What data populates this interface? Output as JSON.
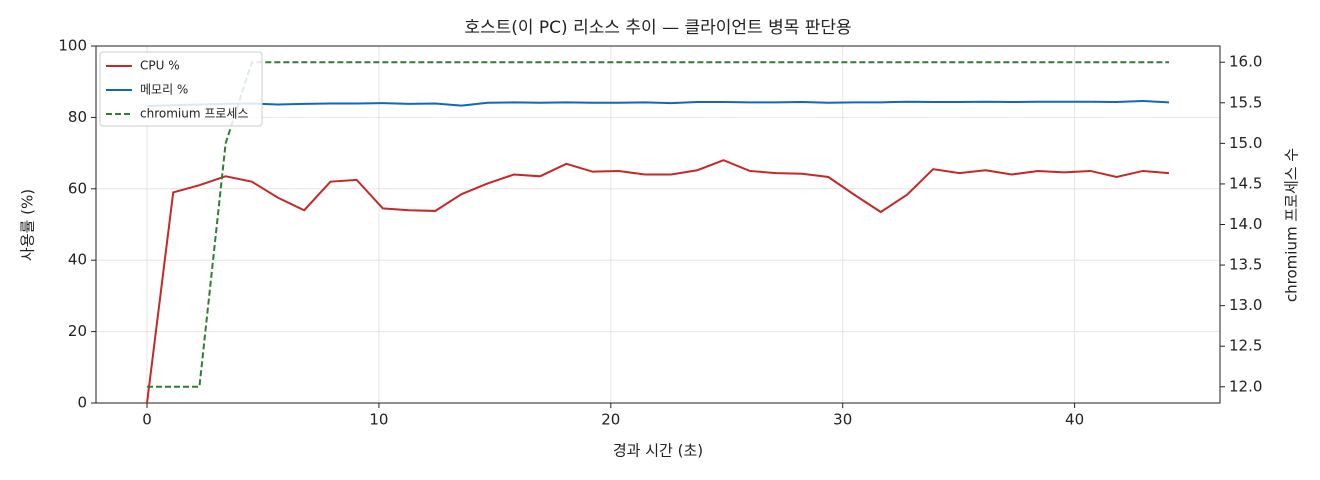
{
  "chart_data": {
    "type": "line",
    "title": "호스트(이 PC) 리소스 추이 — 클라이언트 병목 판단용",
    "x_label": "경과 시간 (초)",
    "y_label": "사용률 (%)",
    "y2_label": "chromium 프로세스 수",
    "x": [
      0,
      1.13,
      2.26,
      3.39,
      4.52,
      5.65,
      6.78,
      7.91,
      9.04,
      10.17,
      11.3,
      12.43,
      13.56,
      14.69,
      15.82,
      16.95,
      18.08,
      19.21,
      20.34,
      21.47,
      22.6,
      23.73,
      24.86,
      25.99,
      27.12,
      28.25,
      29.38,
      30.51,
      31.64,
      32.77,
      33.9,
      35.03,
      36.16,
      37.29,
      38.42,
      39.55,
      40.68,
      41.81,
      42.94,
      44.07
    ],
    "series": [
      {
        "name": "CPU %",
        "color": "#c62828",
        "linestyle": "solid",
        "values": [
          0,
          59,
          61,
          63.5,
          62,
          57.5,
          54,
          62,
          62.5,
          54.5,
          54,
          53.8,
          58.5,
          61.5,
          64,
          63.5,
          67,
          64.8,
          65,
          64,
          64,
          65.2,
          68,
          65,
          64.4,
          64.2,
          63.3,
          58.3,
          53.5,
          58.3,
          65.5,
          64.4,
          65.2,
          64,
          65,
          64.6,
          65,
          63.3,
          65,
          64.4
        ]
      },
      {
        "name": "메모리 %",
        "color": "#1565c0",
        "linestyle": "solid",
        "values": [
          83.2,
          83.4,
          83.6,
          83.8,
          83.9,
          83.6,
          83.8,
          83.9,
          83.9,
          84.0,
          83.8,
          83.9,
          83.3,
          84.1,
          84.2,
          84.1,
          84.2,
          84.1,
          84.1,
          84.2,
          84.0,
          84.3,
          84.3,
          84.2,
          84.2,
          84.3,
          84.1,
          84.2,
          84.2,
          84.4,
          84.3,
          84.3,
          84.4,
          84.3,
          84.4,
          84.4,
          84.4,
          84.3,
          84.6,
          84.2
        ]
      },
      {
        "name": "chromium 프로세스",
        "color": "#2e7d32",
        "linestyle": "dashed",
        "axis": "y2",
        "values": [
          12,
          12,
          12,
          15,
          16,
          16,
          16,
          16,
          16,
          16,
          16,
          16,
          16,
          16,
          16,
          16,
          16,
          16,
          16,
          16,
          16,
          16,
          16,
          16,
          16,
          16,
          16,
          16,
          16,
          16,
          16,
          16,
          16,
          16,
          16,
          16,
          16,
          16,
          16,
          16
        ]
      }
    ],
    "xlim": [
      -2.2,
      46.27
    ],
    "xticks": [
      0,
      10,
      20,
      30,
      40
    ],
    "ylim": [
      0,
      100
    ],
    "yticks": [
      0,
      20,
      40,
      60,
      80,
      100
    ],
    "y2lim": [
      11.8,
      16.2
    ],
    "y2ticks": [
      {
        "value": 12,
        "label": "12.0"
      },
      {
        "value": 12.5,
        "label": "12.5"
      },
      {
        "value": 13,
        "label": "13.0"
      },
      {
        "value": 13.5,
        "label": "13.5"
      },
      {
        "value": 14,
        "label": "14.0"
      },
      {
        "value": 14.5,
        "label": "14.5"
      },
      {
        "value": 15,
        "label": "15.0"
      },
      {
        "value": 15.5,
        "label": "15.5"
      },
      {
        "value": 16,
        "label": "16.0"
      }
    ],
    "grid": true,
    "legend": "upper left"
  }
}
